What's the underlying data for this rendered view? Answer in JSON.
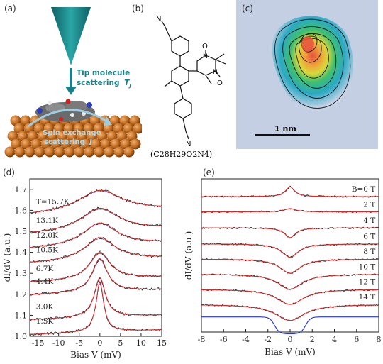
{
  "panels": {
    "a": {
      "label": "(a)",
      "tip_caption_line1": "Tip molecule",
      "tip_caption_line2": "scattering",
      "tip_symbol": "T",
      "tip_subscript": "J",
      "spin_caption_line1": "Spin exchange",
      "spin_caption_line2": "scattering",
      "spin_symbol": "J",
      "colors": {
        "tip": "#1f8a8c",
        "caption": "#1b7f8a",
        "substrate": "#b96a1f",
        "spin_caption": "#9ecde0"
      }
    },
    "b": {
      "label": "(b)",
      "formula": "(C28H29O2N4)",
      "atom_N": "N",
      "atom_O": "O"
    },
    "c": {
      "label": "(c)",
      "scalebar": "1 nm",
      "colors": {
        "background": "#c9d3e6",
        "low": "#6fb7e2",
        "mid": "#27b59b",
        "high": "#e24a3c"
      }
    }
  },
  "chart_data": [
    {
      "panel": "d",
      "label": "(d)",
      "type": "line",
      "xlabel": "Bias V (mV)",
      "ylabel": "dI/dV (a.u.)",
      "xlim": [
        -17,
        15
      ],
      "ylim": [
        1.0,
        1.75
      ],
      "xticks": [
        "-15",
        "-10",
        "-5",
        "0",
        "5",
        "10",
        "15"
      ],
      "yticks": [
        "1.0",
        "1.1",
        "1.2",
        "1.3",
        "1.4",
        "1.5",
        "1.6",
        "1.7"
      ],
      "series": [
        {
          "name": "T=15.7K",
          "baseline": 1.59,
          "peak": 0.105,
          "width": 6.5,
          "tilt": 0.0009
        },
        {
          "name": "13.1K",
          "baseline": 1.5,
          "peak": 0.11,
          "width": 5.5,
          "tilt": 0.0009
        },
        {
          "name": "12.0K",
          "baseline": 1.43,
          "peak": 0.11,
          "width": 5.0,
          "tilt": 0.0009
        },
        {
          "name": "10.5K",
          "baseline": 1.36,
          "peak": 0.11,
          "width": 4.5,
          "tilt": 0.0008
        },
        {
          "name": "6.7K",
          "baseline": 1.27,
          "peak": 0.13,
          "width": 3.0,
          "tilt": 0.0008
        },
        {
          "name": "4.4K",
          "baseline": 1.21,
          "peak": 0.16,
          "width": 2.2,
          "tilt": 0.0008
        },
        {
          "name": "3.0K",
          "baseline": 1.09,
          "peak": 0.19,
          "width": 1.6,
          "tilt": 0.0007
        },
        {
          "name": "1.5K",
          "baseline": 1.02,
          "peak": 0.24,
          "width": 1.1,
          "tilt": 0.0007
        }
      ],
      "colors": {
        "data": "#222222",
        "fit": "#d62a2a",
        "dashed": "#3a56c4"
      }
    },
    {
      "panel": "e",
      "label": "(e)",
      "type": "line",
      "xlabel": "Bias V (mV)",
      "ylabel": "dI/dV (a.u.)",
      "xlim": [
        -8,
        8
      ],
      "xticks": [
        "-8",
        "-6",
        "-4",
        "-2",
        "0",
        "2",
        "4",
        "6",
        "8"
      ],
      "series": [
        {
          "name": "B=0 T",
          "offset": 7.6,
          "shape": "peak",
          "amp": 0.55,
          "width": 0.5
        },
        {
          "name": "2 T",
          "offset": 6.75,
          "shape": "peak",
          "amp": 0.18,
          "width": 0.6
        },
        {
          "name": "4 T",
          "offset": 5.85,
          "shape": "dip",
          "amp": 0.55,
          "width": 0.6
        },
        {
          "name": "6 T",
          "offset": 4.95,
          "shape": "dip",
          "amp": 0.75,
          "width": 0.9
        },
        {
          "name": "8 T",
          "offset": 4.1,
          "shape": "dip",
          "amp": 0.8,
          "width": 1.1
        },
        {
          "name": "10 T",
          "offset": 3.25,
          "shape": "dip",
          "amp": 0.85,
          "width": 1.3
        },
        {
          "name": "12 T",
          "offset": 2.4,
          "shape": "dip",
          "amp": 0.85,
          "width": 1.45
        },
        {
          "name": "14 T",
          "offset": 1.55,
          "shape": "dip",
          "amp": 0.9,
          "width": 1.6
        }
      ],
      "gap_curve": {
        "offset": 0.85,
        "depth": 0.95,
        "halfwidth": 1.4
      },
      "colors": {
        "data": "#222222",
        "fit": "#d62a2a",
        "gap": "#2233dd"
      }
    }
  ]
}
